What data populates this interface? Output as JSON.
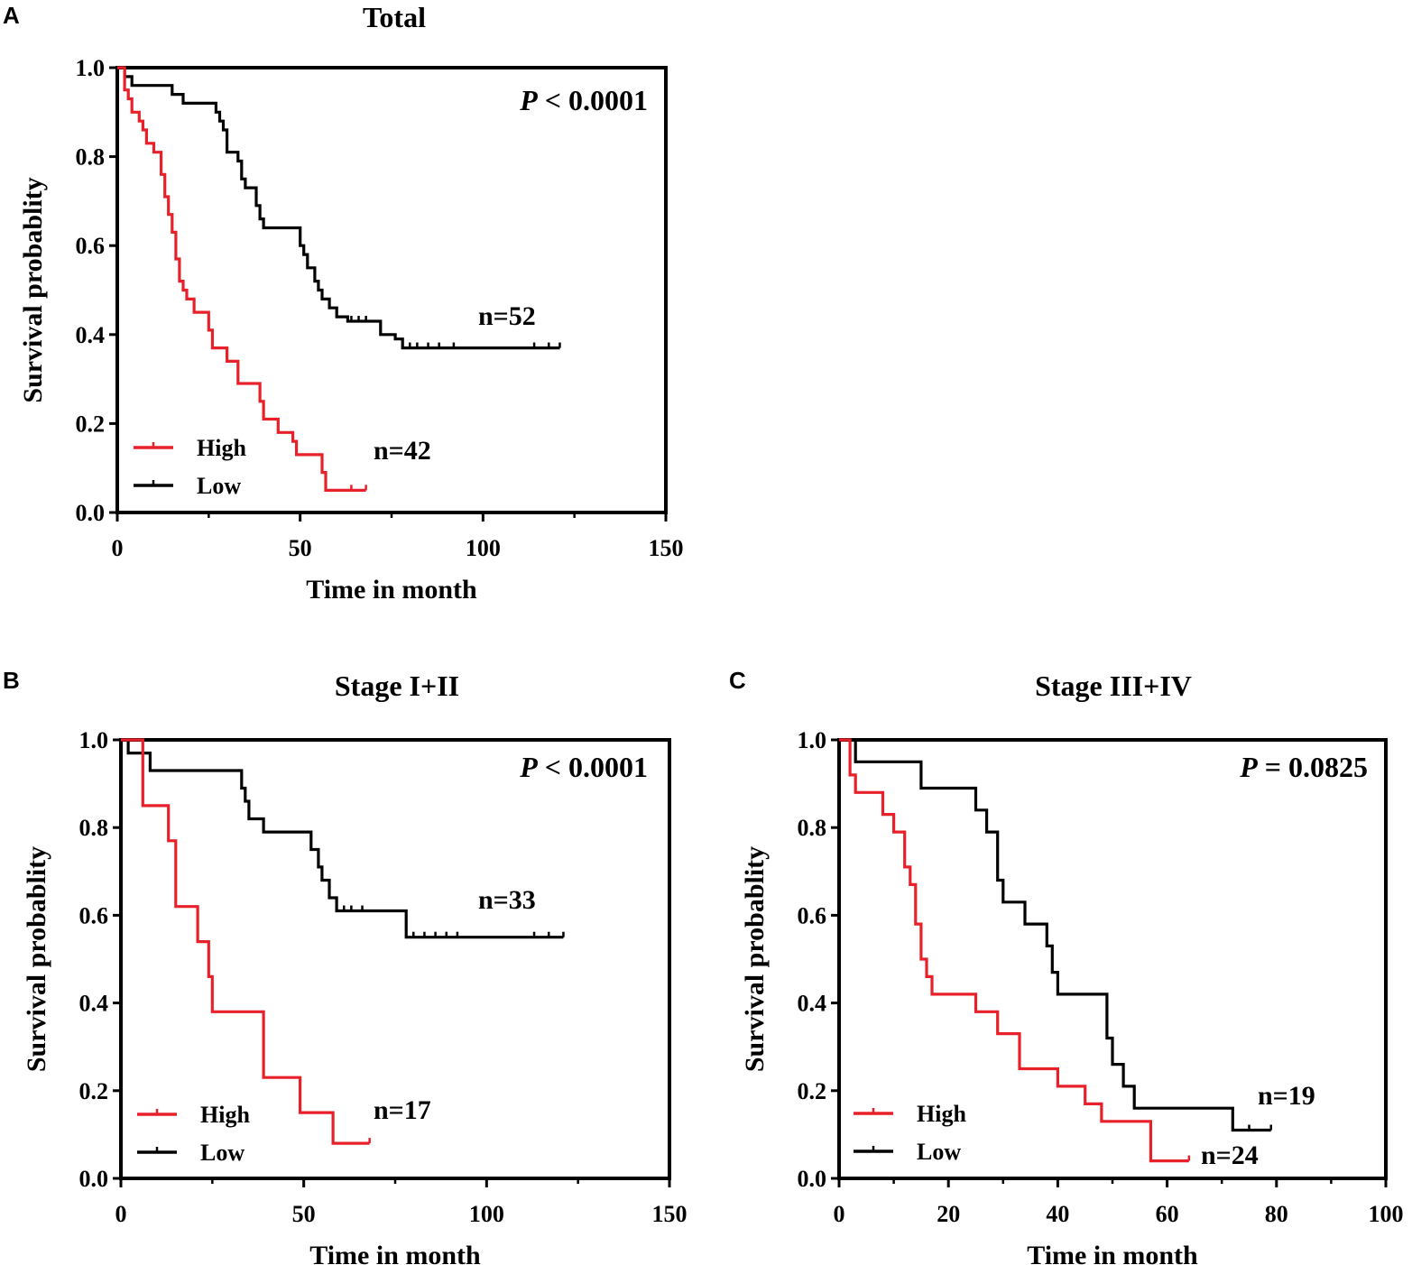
{
  "colors": {
    "high": "#e8202a",
    "low": "#000000",
    "axis": "#000000"
  },
  "chart_data": [
    {
      "panel": "A",
      "type": "line",
      "subtype": "kaplan-meier",
      "title": "Total",
      "xlabel": "Time in month",
      "ylabel": "Survival probablity",
      "xlim": [
        0,
        150
      ],
      "ylim": [
        0,
        1.0
      ],
      "xticks": [
        "0",
        "50",
        "100",
        "150"
      ],
      "yticks": [
        "0.0",
        "0.2",
        "0.4",
        "0.6",
        "0.8",
        "1.0"
      ],
      "p_prefix": "P",
      "p_value": "< 0.0001",
      "legend": [
        "High",
        "Low"
      ],
      "series": [
        {
          "name": "Low",
          "color": "low",
          "n_label": "n=52",
          "points": [
            [
              0,
              1.0
            ],
            [
              2,
              1.0
            ],
            [
              2,
              0.98
            ],
            [
              4,
              0.98
            ],
            [
              4,
              0.96
            ],
            [
              15,
              0.96
            ],
            [
              15,
              0.94
            ],
            [
              18,
              0.94
            ],
            [
              18,
              0.92
            ],
            [
              27,
              0.92
            ],
            [
              27,
              0.9
            ],
            [
              28,
              0.9
            ],
            [
              28,
              0.88
            ],
            [
              29,
              0.88
            ],
            [
              29,
              0.86
            ],
            [
              30,
              0.86
            ],
            [
              30,
              0.81
            ],
            [
              33,
              0.81
            ],
            [
              33,
              0.79
            ],
            [
              34,
              0.79
            ],
            [
              34,
              0.75
            ],
            [
              35,
              0.75
            ],
            [
              35,
              0.73
            ],
            [
              38,
              0.73
            ],
            [
              38,
              0.69
            ],
            [
              39,
              0.69
            ],
            [
              39,
              0.66
            ],
            [
              40,
              0.66
            ],
            [
              40,
              0.64
            ],
            [
              50,
              0.64
            ],
            [
              50,
              0.6
            ],
            [
              51,
              0.6
            ],
            [
              51,
              0.58
            ],
            [
              52,
              0.58
            ],
            [
              52,
              0.55
            ],
            [
              54,
              0.55
            ],
            [
              54,
              0.52
            ],
            [
              55,
              0.52
            ],
            [
              55,
              0.5
            ],
            [
              56,
              0.5
            ],
            [
              56,
              0.48
            ],
            [
              58,
              0.48
            ],
            [
              58,
              0.46
            ],
            [
              60,
              0.46
            ],
            [
              60,
              0.44
            ],
            [
              63,
              0.44
            ],
            [
              63,
              0.43
            ],
            [
              72,
              0.43
            ],
            [
              72,
              0.4
            ],
            [
              76,
              0.4
            ],
            [
              76,
              0.39
            ],
            [
              78,
              0.39
            ],
            [
              78,
              0.37
            ],
            [
              121,
              0.37
            ]
          ],
          "censors": [
            [
              64,
              0.43
            ],
            [
              66,
              0.43
            ],
            [
              68,
              0.43
            ],
            [
              80,
              0.37
            ],
            [
              82,
              0.37
            ],
            [
              85,
              0.37
            ],
            [
              88,
              0.37
            ],
            [
              92,
              0.37
            ],
            [
              114,
              0.37
            ],
            [
              118,
              0.37
            ],
            [
              121,
              0.37
            ]
          ]
        },
        {
          "name": "High",
          "color": "high",
          "n_label": "n=42",
          "points": [
            [
              0,
              1.0
            ],
            [
              2,
              1.0
            ],
            [
              2,
              0.95
            ],
            [
              3,
              0.95
            ],
            [
              3,
              0.93
            ],
            [
              4,
              0.93
            ],
            [
              4,
              0.9
            ],
            [
              6,
              0.9
            ],
            [
              6,
              0.88
            ],
            [
              7,
              0.88
            ],
            [
              7,
              0.86
            ],
            [
              8,
              0.86
            ],
            [
              8,
              0.83
            ],
            [
              10,
              0.83
            ],
            [
              10,
              0.81
            ],
            [
              12,
              0.81
            ],
            [
              12,
              0.76
            ],
            [
              13,
              0.76
            ],
            [
              13,
              0.71
            ],
            [
              14,
              0.71
            ],
            [
              14,
              0.67
            ],
            [
              15,
              0.67
            ],
            [
              15,
              0.63
            ],
            [
              16,
              0.63
            ],
            [
              16,
              0.57
            ],
            [
              17,
              0.57
            ],
            [
              17,
              0.52
            ],
            [
              18,
              0.52
            ],
            [
              18,
              0.5
            ],
            [
              19,
              0.5
            ],
            [
              19,
              0.48
            ],
            [
              21,
              0.48
            ],
            [
              21,
              0.45
            ],
            [
              25,
              0.45
            ],
            [
              25,
              0.41
            ],
            [
              26,
              0.41
            ],
            [
              26,
              0.37
            ],
            [
              30,
              0.37
            ],
            [
              30,
              0.34
            ],
            [
              33,
              0.34
            ],
            [
              33,
              0.29
            ],
            [
              39,
              0.29
            ],
            [
              39,
              0.25
            ],
            [
              40,
              0.25
            ],
            [
              40,
              0.21
            ],
            [
              44,
              0.21
            ],
            [
              44,
              0.18
            ],
            [
              48,
              0.18
            ],
            [
              48,
              0.16
            ],
            [
              49,
              0.16
            ],
            [
              49,
              0.13
            ],
            [
              56,
              0.13
            ],
            [
              56,
              0.09
            ],
            [
              57,
              0.09
            ],
            [
              57,
              0.05
            ],
            [
              68,
              0.05
            ]
          ],
          "censors": [
            [
              64,
              0.05
            ],
            [
              68,
              0.05
            ]
          ]
        }
      ]
    },
    {
      "panel": "B",
      "type": "line",
      "subtype": "kaplan-meier",
      "title": "Stage I+II",
      "xlabel": "Time in month",
      "ylabel": "Survival probablity",
      "xlim": [
        0,
        150
      ],
      "ylim": [
        0,
        1.0
      ],
      "xticks": [
        "0",
        "50",
        "100",
        "150"
      ],
      "yticks": [
        "0.0",
        "0.2",
        "0.4",
        "0.6",
        "0.8",
        "1.0"
      ],
      "p_prefix": "P",
      "p_value": "< 0.0001",
      "legend": [
        "High",
        "Low"
      ],
      "series": [
        {
          "name": "Low",
          "color": "low",
          "n_label": "n=33",
          "points": [
            [
              0,
              1.0
            ],
            [
              2,
              1.0
            ],
            [
              2,
              0.97
            ],
            [
              8,
              0.97
            ],
            [
              8,
              0.93
            ],
            [
              33,
              0.93
            ],
            [
              33,
              0.89
            ],
            [
              34,
              0.89
            ],
            [
              34,
              0.86
            ],
            [
              35,
              0.86
            ],
            [
              35,
              0.82
            ],
            [
              39,
              0.82
            ],
            [
              39,
              0.79
            ],
            [
              52,
              0.79
            ],
            [
              52,
              0.75
            ],
            [
              54,
              0.75
            ],
            [
              54,
              0.71
            ],
            [
              55,
              0.71
            ],
            [
              55,
              0.68
            ],
            [
              57,
              0.68
            ],
            [
              57,
              0.64
            ],
            [
              59,
              0.64
            ],
            [
              59,
              0.61
            ],
            [
              67,
              0.61
            ],
            [
              67,
              0.61
            ],
            [
              78,
              0.61
            ],
            [
              78,
              0.55
            ],
            [
              121,
              0.55
            ]
          ],
          "censors": [
            [
              61,
              0.61
            ],
            [
              63,
              0.61
            ],
            [
              66,
              0.61
            ],
            [
              80,
              0.55
            ],
            [
              83,
              0.55
            ],
            [
              86,
              0.55
            ],
            [
              89,
              0.55
            ],
            [
              92,
              0.55
            ],
            [
              113,
              0.55
            ],
            [
              117,
              0.55
            ],
            [
              121,
              0.55
            ]
          ]
        },
        {
          "name": "High",
          "color": "high",
          "n_label": "n=17",
          "points": [
            [
              0,
              1.0
            ],
            [
              6,
              1.0
            ],
            [
              6,
              0.85
            ],
            [
              13,
              0.85
            ],
            [
              13,
              0.77
            ],
            [
              15,
              0.77
            ],
            [
              15,
              0.62
            ],
            [
              21,
              0.62
            ],
            [
              21,
              0.54
            ],
            [
              24,
              0.54
            ],
            [
              24,
              0.46
            ],
            [
              25,
              0.46
            ],
            [
              25,
              0.38
            ],
            [
              39,
              0.38
            ],
            [
              39,
              0.23
            ],
            [
              49,
              0.23
            ],
            [
              49,
              0.15
            ],
            [
              58,
              0.15
            ],
            [
              58,
              0.08
            ],
            [
              68,
              0.08
            ]
          ],
          "censors": [
            [
              68,
              0.08
            ]
          ]
        }
      ]
    },
    {
      "panel": "C",
      "type": "line",
      "subtype": "kaplan-meier",
      "title": "Stage III+IV",
      "xlabel": "Time in month",
      "ylabel": "Survival probablity",
      "xlim": [
        0,
        100
      ],
      "ylim": [
        0,
        1.0
      ],
      "xticks": [
        "0",
        "20",
        "40",
        "60",
        "80",
        "100"
      ],
      "yticks": [
        "0.0",
        "0.2",
        "0.4",
        "0.6",
        "0.8",
        "1.0"
      ],
      "p_prefix": "P",
      "p_value": "= 0.0825",
      "legend": [
        "High",
        "Low"
      ],
      "series": [
        {
          "name": "Low",
          "color": "low",
          "n_label": "n=19",
          "points": [
            [
              0,
              1.0
            ],
            [
              3,
              1.0
            ],
            [
              3,
              0.95
            ],
            [
              15,
              0.95
            ],
            [
              15,
              0.89
            ],
            [
              25,
              0.89
            ],
            [
              25,
              0.84
            ],
            [
              27,
              0.84
            ],
            [
              27,
              0.79
            ],
            [
              29,
              0.79
            ],
            [
              29,
              0.68
            ],
            [
              30,
              0.68
            ],
            [
              30,
              0.63
            ],
            [
              34,
              0.63
            ],
            [
              34,
              0.58
            ],
            [
              38,
              0.58
            ],
            [
              38,
              0.53
            ],
            [
              39,
              0.53
            ],
            [
              39,
              0.47
            ],
            [
              40,
              0.47
            ],
            [
              40,
              0.42
            ],
            [
              49,
              0.42
            ],
            [
              49,
              0.32
            ],
            [
              50,
              0.32
            ],
            [
              50,
              0.26
            ],
            [
              52,
              0.26
            ],
            [
              52,
              0.21
            ],
            [
              54,
              0.21
            ],
            [
              54,
              0.16
            ],
            [
              72,
              0.16
            ],
            [
              72,
              0.11
            ],
            [
              79,
              0.11
            ]
          ],
          "censors": [
            [
              75,
              0.11
            ],
            [
              79,
              0.11
            ]
          ]
        },
        {
          "name": "High",
          "color": "high",
          "n_label": "n=24",
          "points": [
            [
              0,
              1.0
            ],
            [
              2,
              1.0
            ],
            [
              2,
              0.92
            ],
            [
              3,
              0.92
            ],
            [
              3,
              0.88
            ],
            [
              8,
              0.88
            ],
            [
              8,
              0.83
            ],
            [
              10,
              0.83
            ],
            [
              10,
              0.79
            ],
            [
              12,
              0.79
            ],
            [
              12,
              0.71
            ],
            [
              13,
              0.71
            ],
            [
              13,
              0.67
            ],
            [
              14,
              0.67
            ],
            [
              14,
              0.58
            ],
            [
              15,
              0.58
            ],
            [
              15,
              0.5
            ],
            [
              16,
              0.5
            ],
            [
              16,
              0.46
            ],
            [
              17,
              0.46
            ],
            [
              17,
              0.42
            ],
            [
              25,
              0.42
            ],
            [
              25,
              0.38
            ],
            [
              29,
              0.38
            ],
            [
              29,
              0.33
            ],
            [
              33,
              0.33
            ],
            [
              33,
              0.25
            ],
            [
              40,
              0.25
            ],
            [
              40,
              0.21
            ],
            [
              45,
              0.21
            ],
            [
              45,
              0.17
            ],
            [
              48,
              0.17
            ],
            [
              48,
              0.13
            ],
            [
              57,
              0.13
            ],
            [
              57,
              0.04
            ],
            [
              64,
              0.04
            ]
          ],
          "censors": [
            [
              64,
              0.04
            ]
          ]
        }
      ]
    }
  ]
}
